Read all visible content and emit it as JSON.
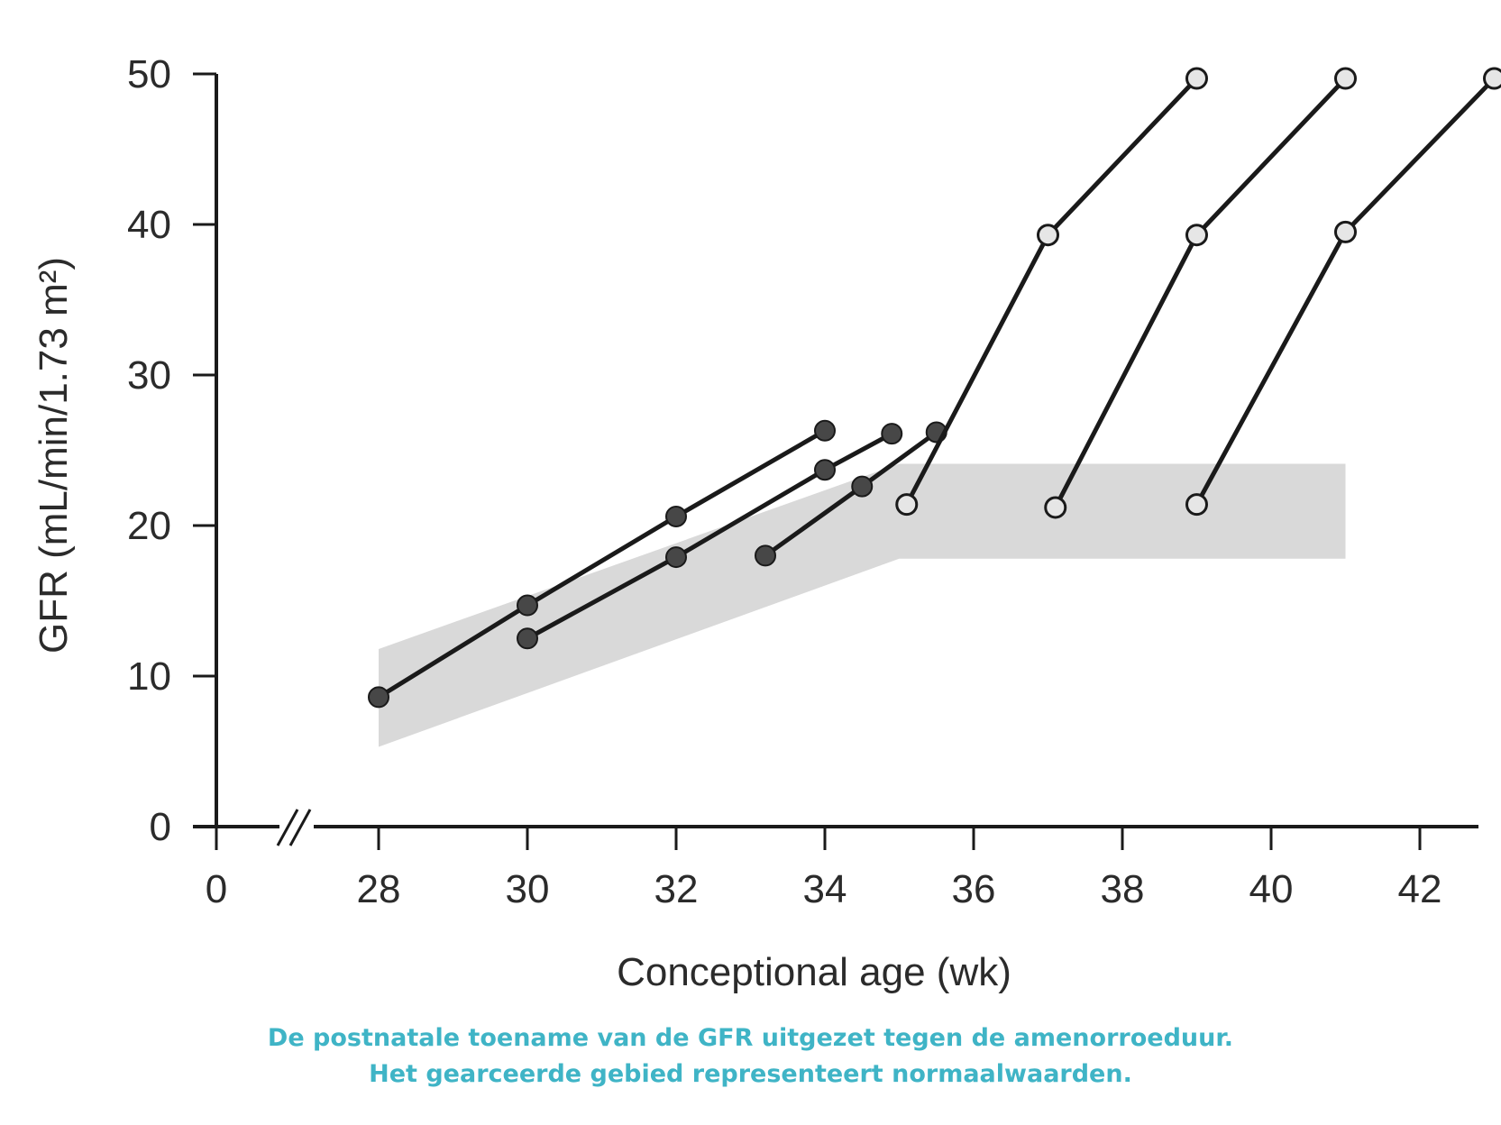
{
  "chart_data": {
    "type": "line",
    "xlabel": "Conceptional age (wk)",
    "ylabel": "GFR (mL/min/1.73 m²)",
    "x_ticks": [
      "0",
      "28",
      "30",
      "32",
      "34",
      "36",
      "38",
      "40",
      "42"
    ],
    "y_ticks": [
      "0",
      "10",
      "20",
      "30",
      "40",
      "50"
    ],
    "xlim": [
      26.5,
      43
    ],
    "ylim": [
      0,
      50
    ],
    "axis_break": "x between 0 and 28",
    "grid": false,
    "normal_range_band": {
      "x": [
        28,
        35,
        41
      ],
      "lower": [
        5.3,
        17.8,
        17.8
      ],
      "upper": [
        11.8,
        24.1,
        24.1
      ],
      "color": "#d9d9d9"
    },
    "series": [
      {
        "marker": "filled",
        "x": [
          28,
          30,
          32,
          34
        ],
        "y": [
          8.6,
          14.7,
          20.6,
          26.3
        ]
      },
      {
        "marker": "filled",
        "x": [
          30,
          32,
          34,
          34.9
        ],
        "y": [
          12.5,
          17.9,
          23.7,
          26.1
        ]
      },
      {
        "marker": "filled",
        "x": [
          33.2,
          34.5,
          35.5
        ],
        "y": [
          18.0,
          22.6,
          26.2
        ]
      },
      {
        "marker": "open",
        "x": [
          35.1,
          37,
          39
        ],
        "y": [
          21.4,
          39.3,
          49.7
        ]
      },
      {
        "marker": "open",
        "x": [
          37.1,
          39,
          41
        ],
        "y": [
          21.2,
          39.3,
          49.7
        ]
      },
      {
        "marker": "open",
        "x": [
          39,
          41,
          43
        ],
        "y": [
          21.4,
          39.5,
          49.7
        ]
      }
    ],
    "colors": {
      "line": "#1a1a1a",
      "filled_marker": "#474747",
      "open_marker": "#e6e6e6",
      "band": "#d9d9d9"
    }
  },
  "caption": {
    "line1": "De postnatale toename van de GFR uitgezet tegen de amenorroeduur.",
    "line2": "Het gearceerde gebied representeert normaalwaarden.",
    "color": "#3fb4c6"
  }
}
